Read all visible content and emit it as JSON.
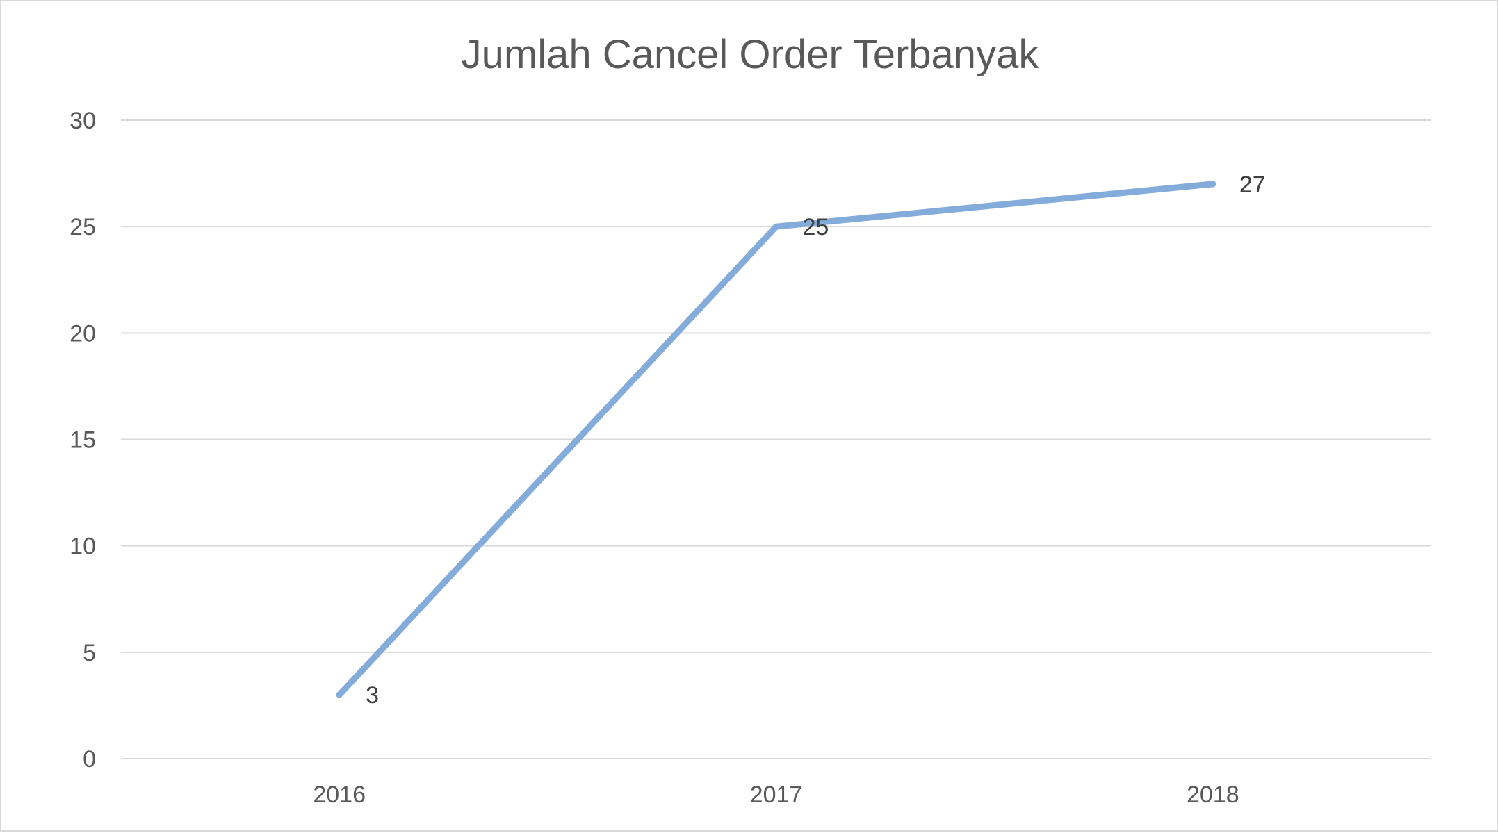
{
  "chart_data": {
    "type": "line",
    "title": "Jumlah Cancel Order Terbanyak",
    "xlabel": "",
    "ylabel": "",
    "categories": [
      "2016",
      "2017",
      "2018"
    ],
    "series": [
      {
        "values": [
          3,
          25,
          27
        ],
        "data_labels": [
          "3",
          "25",
          "27"
        ],
        "color": "#84acdb"
      }
    ],
    "ylim": [
      0,
      30
    ],
    "yticks": [
      "0",
      "5",
      "10",
      "15",
      "20",
      "25",
      "30"
    ],
    "grid": true,
    "legend": "none"
  }
}
